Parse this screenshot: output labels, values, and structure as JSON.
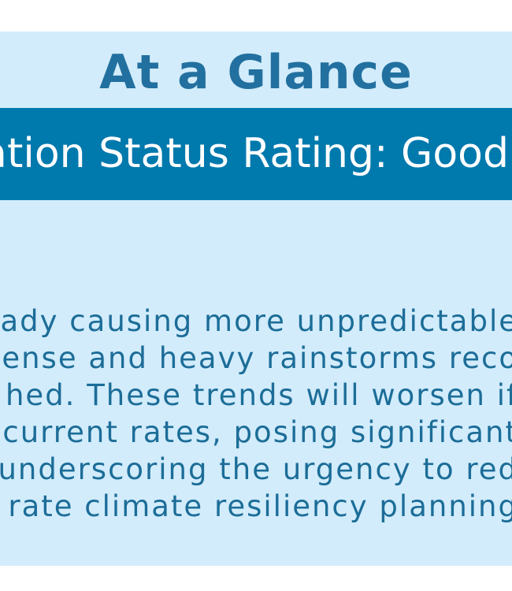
{
  "panel": {
    "title": "At a Glance",
    "status": "ation Status Rating: Good",
    "body_lines": [
      "ady causing more unpredictable",
      "tense and heavy rainstorms reco",
      "hed. These trends will worsen if",
      "current rates, posing significant",
      "underscoring the urgency to red",
      "rate climate resiliency planning"
    ]
  },
  "colors": {
    "panel_background": "#d2ecfb",
    "title": "#22709f",
    "status_band": "#0079ad",
    "status_text": "#ffffff",
    "body_text": "#1c6d98"
  }
}
